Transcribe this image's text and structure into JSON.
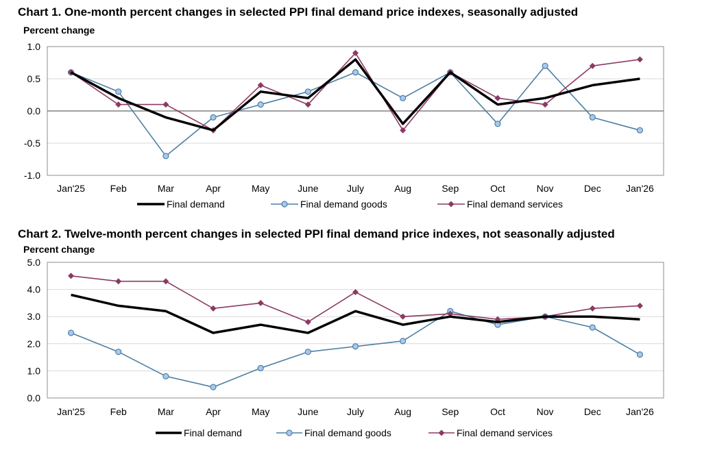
{
  "colors": {
    "final_demand": "#000000",
    "final_demand_goods": "#4d7fa3",
    "goods_marker_fill": "#a8c8ee",
    "final_demand_services": "#8b3a62",
    "grid": "#d9d9d9",
    "zero_line": "#808080"
  },
  "chart_data": [
    {
      "type": "line",
      "title": "Chart 1. One-month percent changes in selected PPI final demand price indexes, seasonally adjusted",
      "ylabel": "Percent change",
      "xlabel": "",
      "ylim": [
        -1.0,
        1.0
      ],
      "yticks": [
        "-1.0",
        "-0.5",
        "0.0",
        "0.5",
        "1.0"
      ],
      "categories": [
        "Jan'25",
        "Feb",
        "Mar",
        "Apr",
        "May",
        "June",
        "July",
        "Aug",
        "Sep",
        "Oct",
        "Nov",
        "Dec",
        "Jan'26"
      ],
      "grid": true,
      "legend_position": "bottom",
      "series": [
        {
          "name": "Final demand",
          "values": [
            0.6,
            0.2,
            -0.1,
            -0.3,
            0.3,
            0.2,
            0.8,
            -0.2,
            0.6,
            0.1,
            0.2,
            0.4,
            0.5
          ]
        },
        {
          "name": "Final demand goods",
          "values": [
            0.6,
            0.3,
            -0.7,
            -0.1,
            0.1,
            0.3,
            0.6,
            0.2,
            0.6,
            -0.2,
            0.7,
            -0.1,
            -0.3
          ]
        },
        {
          "name": "Final demand services",
          "values": [
            0.6,
            0.1,
            0.1,
            -0.3,
            0.4,
            0.1,
            0.9,
            -0.3,
            0.6,
            0.2,
            0.1,
            0.7,
            0.8
          ]
        }
      ]
    },
    {
      "type": "line",
      "title": "Chart 2. Twelve-month percent changes in selected PPI final demand price indexes, not seasonally adjusted",
      "ylabel": "Percent change",
      "xlabel": "",
      "ylim": [
        0.0,
        5.0
      ],
      "yticks": [
        "0.0",
        "1.0",
        "2.0",
        "3.0",
        "4.0",
        "5.0"
      ],
      "categories": [
        "Jan'25",
        "Feb",
        "Mar",
        "Apr",
        "May",
        "June",
        "July",
        "Aug",
        "Sep",
        "Oct",
        "Nov",
        "Dec",
        "Jan'26"
      ],
      "grid": true,
      "legend_position": "bottom",
      "series": [
        {
          "name": "Final demand",
          "values": [
            3.8,
            3.4,
            3.2,
            2.4,
            2.7,
            2.4,
            3.2,
            2.7,
            3.0,
            2.8,
            3.0,
            3.0,
            2.9
          ]
        },
        {
          "name": "Final demand goods",
          "values": [
            2.4,
            1.7,
            0.8,
            0.4,
            1.1,
            1.7,
            1.9,
            2.1,
            3.2,
            2.7,
            3.0,
            2.6,
            1.6
          ]
        },
        {
          "name": "Final demand services",
          "values": [
            4.5,
            4.3,
            4.3,
            3.3,
            3.5,
            2.8,
            3.9,
            3.0,
            3.1,
            2.9,
            3.0,
            3.3,
            3.4
          ]
        }
      ]
    }
  ]
}
